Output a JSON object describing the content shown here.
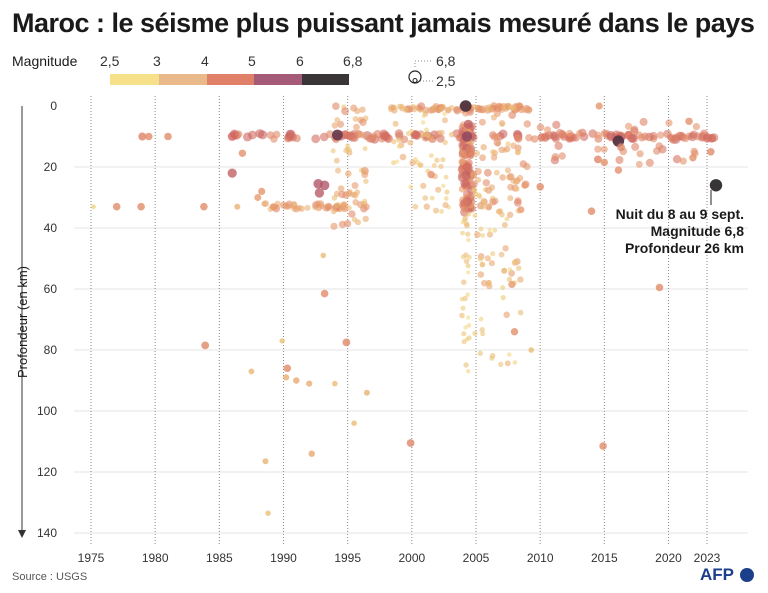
{
  "title": "Maroc : le séisme plus puissant jamais mesuré dans le pays",
  "legend": {
    "label": "Magnitude",
    "ticks": [
      "2,5",
      "3",
      "4",
      "5",
      "6",
      "6,8"
    ],
    "colors": [
      "#f7e08a",
      "#eab98a",
      "#e08068",
      "#a55a78",
      "#3a3638"
    ],
    "size_max": "6,8",
    "size_min": "2,5"
  },
  "annotation": {
    "line1": "Nuit du 8 au 9 sept.",
    "line2": "Magnitude 6,8",
    "line3": "Profondeur 26 km"
  },
  "source": "Source : USGS",
  "logo": "AFP",
  "chart_data": {
    "type": "scatter",
    "title": "Maroc : le séisme plus puissant jamais mesuré dans le pays",
    "xlabel": "",
    "ylabel": "Profondeur (en km)",
    "xlim": [
      1973,
      2024.5
    ],
    "ylim": [
      140,
      0
    ],
    "y_reversed": true,
    "x_ticks": [
      1975,
      1980,
      1985,
      1990,
      1995,
      2000,
      2005,
      2010,
      2015,
      2020,
      2023
    ],
    "y_ticks": [
      0,
      20,
      40,
      60,
      80,
      100,
      120,
      140
    ],
    "grid": "vertical dotted",
    "color_by": "magnitude",
    "points": [
      {
        "x": 1975.2,
        "y": 33,
        "m": 2.8
      },
      {
        "x": 1977,
        "y": 33,
        "m": 4.3
      },
      {
        "x": 1978.9,
        "y": 33,
        "m": 4.3
      },
      {
        "x": 1979,
        "y": 10,
        "m": 4.5
      },
      {
        "x": 1979.5,
        "y": 10,
        "m": 4.3
      },
      {
        "x": 1981,
        "y": 10,
        "m": 4.3
      },
      {
        "x": 1983.8,
        "y": 33,
        "m": 4.3
      },
      {
        "x": 1983.9,
        "y": 78.5,
        "m": 4.4
      },
      {
        "x": 1986,
        "y": 22,
        "m": 5.2
      },
      {
        "x": 1986,
        "y": 10,
        "m": 5.0
      },
      {
        "x": 1986.4,
        "y": 33,
        "m": 3.5
      },
      {
        "x": 1986.8,
        "y": 15.5,
        "m": 4.2
      },
      {
        "x": 1987.5,
        "y": 87,
        "m": 3.4
      },
      {
        "x": 1988,
        "y": 30,
        "m": 4.0
      },
      {
        "x": 1988.3,
        "y": 28,
        "m": 4.1
      },
      {
        "x": 1988.6,
        "y": 116.5,
        "m": 3.5
      },
      {
        "x": 1988.8,
        "y": 133.5,
        "m": 3.2
      },
      {
        "x": 1989.2,
        "y": 33,
        "m": 4.0
      },
      {
        "x": 1989.9,
        "y": 77,
        "m": 3.2
      },
      {
        "x": 1990.2,
        "y": 89,
        "m": 3.6
      },
      {
        "x": 1990.3,
        "y": 86,
        "m": 4.3
      },
      {
        "x": 1991,
        "y": 90,
        "m": 3.7
      },
      {
        "x": 1992,
        "y": 91,
        "m": 3.6
      },
      {
        "x": 1992.2,
        "y": 114,
        "m": 3.7
      },
      {
        "x": 1992.7,
        "y": 25.5,
        "m": 5.4
      },
      {
        "x": 1992.8,
        "y": 28.5,
        "m": 5.3
      },
      {
        "x": 1993.2,
        "y": 26,
        "m": 5.4
      },
      {
        "x": 1993.2,
        "y": 61.5,
        "m": 4.3
      },
      {
        "x": 1993.1,
        "y": 49,
        "m": 3.3
      },
      {
        "x": 1994,
        "y": 91,
        "m": 3.3
      },
      {
        "x": 1994.2,
        "y": 9.5,
        "m": 6.0
      },
      {
        "x": 1994.9,
        "y": 77.5,
        "m": 4.4
      },
      {
        "x": 1995.5,
        "y": 104,
        "m": 3.3
      },
      {
        "x": 1996.5,
        "y": 94,
        "m": 3.5
      },
      {
        "x": 1999.9,
        "y": 110.5,
        "m": 4.4
      },
      {
        "x": 2001.5,
        "y": 22.5,
        "m": 4.2
      },
      {
        "x": 2004.2,
        "y": 0,
        "m": 6.4
      },
      {
        "x": 2004.3,
        "y": 10,
        "m": 5.8
      },
      {
        "x": 2004.3,
        "y": 20,
        "m": 5.0
      },
      {
        "x": 2004.4,
        "y": 6,
        "m": 5.2
      },
      {
        "x": 2005.5,
        "y": 52,
        "m": 3.3
      },
      {
        "x": 2006,
        "y": 58,
        "m": 3.5
      },
      {
        "x": 2007.2,
        "y": 54,
        "m": 3.5
      },
      {
        "x": 2007.8,
        "y": 58.5,
        "m": 4.1
      },
      {
        "x": 2008,
        "y": 74,
        "m": 4.2
      },
      {
        "x": 2008.5,
        "y": 34,
        "m": 4.0
      },
      {
        "x": 2008.8,
        "y": 26,
        "m": 4.0
      },
      {
        "x": 2009.3,
        "y": 80,
        "m": 3.3
      },
      {
        "x": 2010,
        "y": 26.5,
        "m": 4.3
      },
      {
        "x": 2014,
        "y": 34.5,
        "m": 4.3
      },
      {
        "x": 2014.6,
        "y": 0,
        "m": 4.1
      },
      {
        "x": 2014.5,
        "y": 17.5,
        "m": 4.4
      },
      {
        "x": 2014.9,
        "y": 111.5,
        "m": 4.3
      },
      {
        "x": 2015,
        "y": 18.5,
        "m": 4.2
      },
      {
        "x": 2016.1,
        "y": 11.5,
        "m": 6.3
      },
      {
        "x": 2016.3,
        "y": 13.5,
        "m": 4.4
      },
      {
        "x": 2016.1,
        "y": 21,
        "m": 4.2
      },
      {
        "x": 2019.3,
        "y": 59.5,
        "m": 4.3
      },
      {
        "x": 2021.6,
        "y": 5,
        "m": 4.2
      },
      {
        "x": 2021.9,
        "y": 17,
        "m": 4.2
      },
      {
        "x": 2023.3,
        "y": 15,
        "m": 4.3
      },
      {
        "x": 2023.7,
        "y": 26,
        "m": 6.8
      }
    ],
    "dense_clusters": [
      {
        "name": "band_10km",
        "x": [
          1986,
          2023.7
        ],
        "y": [
          9,
          11
        ],
        "m": [
          4.2,
          5.2
        ],
        "n": 150
      },
      {
        "name": "band_0km_2000",
        "x": [
          1998.3,
          2009.2
        ],
        "y": [
          0,
          1.5
        ],
        "m": [
          3.0,
          4.5
        ],
        "n": 80
      },
      {
        "name": "band_33km_1990s",
        "x": [
          1988.5,
          1997
        ],
        "y": [
          32,
          34
        ],
        "m": [
          3.5,
          4.5
        ],
        "n": 40
      },
      {
        "name": "column_2004",
        "x": [
          2003.9,
          2004.7
        ],
        "y": [
          0,
          35
        ],
        "m": [
          3.8,
          5.3
        ],
        "n": 110
      },
      {
        "name": "column_2004_deep",
        "x": [
          2003.9,
          2004.5
        ],
        "y": [
          35,
          90
        ],
        "m": [
          2.6,
          3.4
        ],
        "n": 30
      },
      {
        "name": "cluster_2005_2008_shallow",
        "x": [
          2004.7,
          2009
        ],
        "y": [
          0,
          35
        ],
        "m": [
          3.0,
          4.5
        ],
        "n": 80
      },
      {
        "name": "cluster_2005_2008_deep",
        "x": [
          2004.9,
          2008.5
        ],
        "y": [
          35,
          87
        ],
        "m": [
          2.7,
          4.0
        ],
        "n": 45
      },
      {
        "name": "cluster_1994_1996",
        "x": [
          1993.8,
          1996.5
        ],
        "y": [
          0,
          40
        ],
        "m": [
          3.0,
          4.5
        ],
        "n": 55
      },
      {
        "name": "cluster_2000_2003",
        "x": [
          1998.5,
          2003.2
        ],
        "y": [
          2,
          35
        ],
        "m": [
          2.6,
          3.8
        ],
        "n": 50
      },
      {
        "name": "cluster_2010s",
        "x": [
          2010,
          2023.5
        ],
        "y": [
          5,
          20
        ],
        "m": [
          4.0,
          4.8
        ],
        "n": 35
      }
    ]
  }
}
